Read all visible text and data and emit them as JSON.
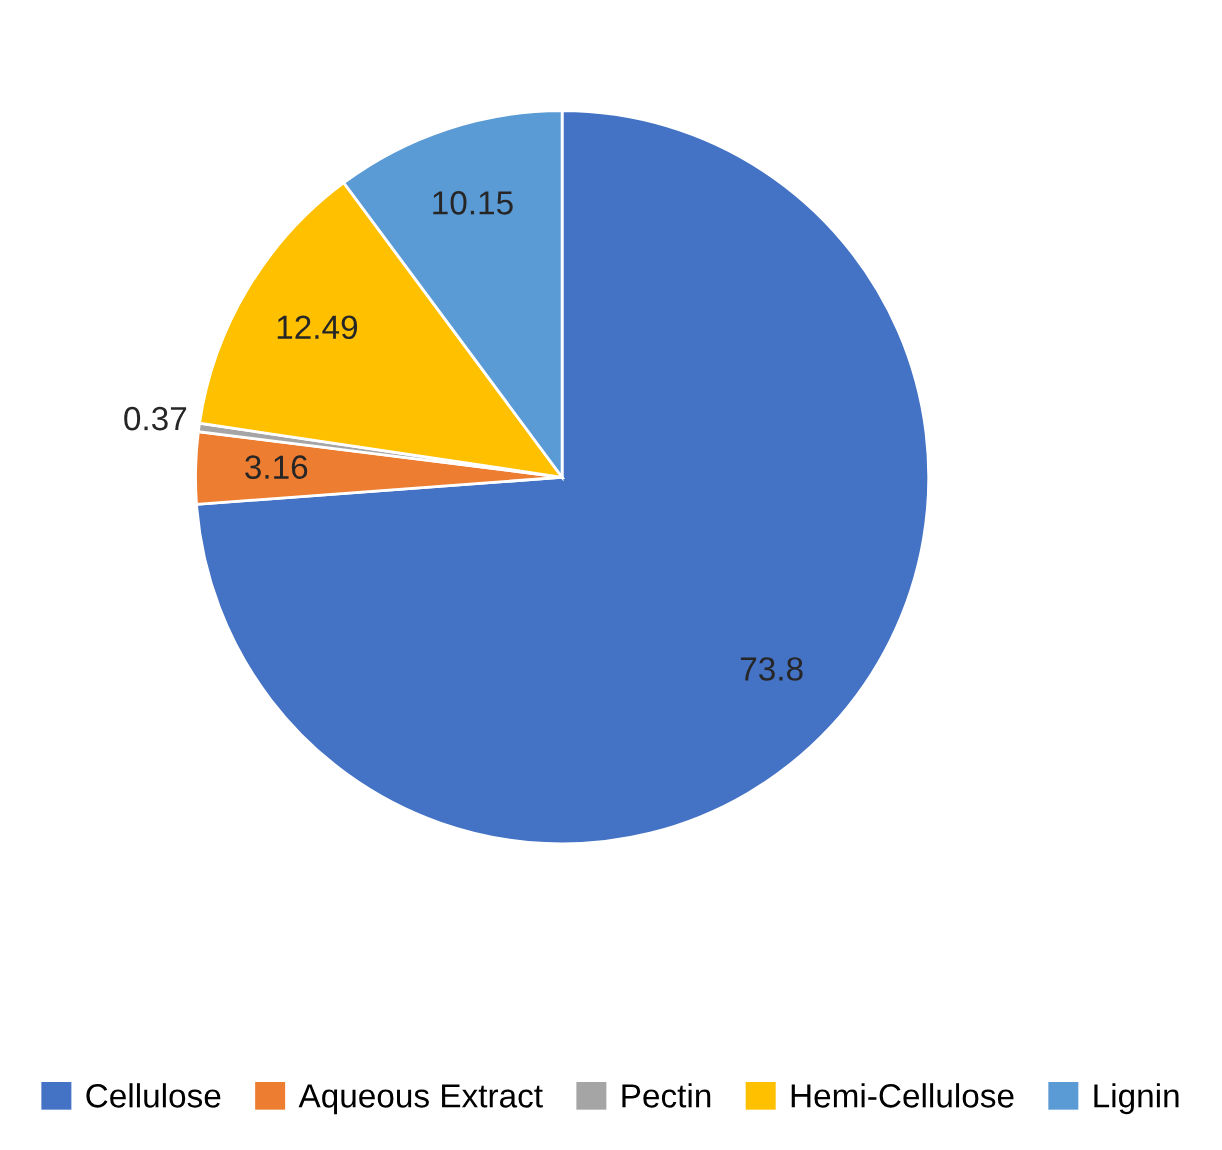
{
  "chart_data": {
    "type": "pie",
    "categories": [
      "Cellulose",
      "Aqueous Extract",
      "Pectin",
      "Hemi-Cellulose",
      "Lignin"
    ],
    "values": [
      73.8,
      3.16,
      0.37,
      12.49,
      10.15
    ],
    "colors": [
      "#4472c4",
      "#ed7d31",
      "#a5a5a5",
      "#ffc000",
      "#5b9bd5"
    ],
    "data_labels": true,
    "legend": "bottom"
  }
}
